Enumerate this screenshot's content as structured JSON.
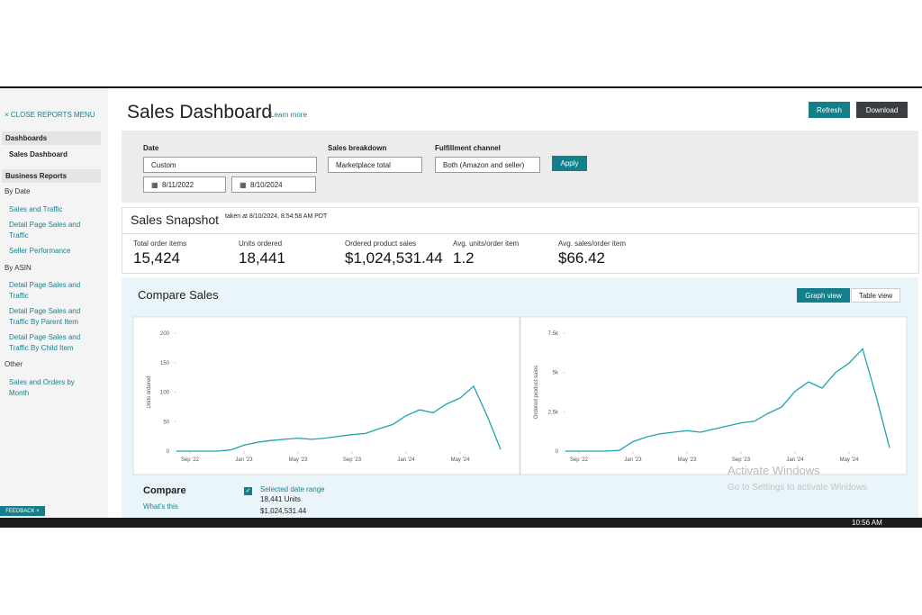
{
  "sidebar": {
    "close": "CLOSE REPORTS MENU",
    "dashboards": {
      "heading": "Dashboards",
      "links": [
        "Sales Dashboard"
      ]
    },
    "business_reports": {
      "heading": "Business Reports",
      "groups": [
        {
          "heading": "By Date",
          "links": [
            "Sales and Traffic",
            "Detail Page Sales and Traffic",
            "Seller Performance"
          ]
        },
        {
          "heading": "By ASIN",
          "links": [
            "Detail Page Sales and Traffic",
            "Detail Page Sales and Traffic By Parent Item",
            "Detail Page Sales and Traffic By Child Item"
          ]
        },
        {
          "heading": "Other",
          "links": [
            "Sales and Orders by Month"
          ]
        }
      ]
    },
    "feedback": "FEEDBACK"
  },
  "header": {
    "title": "Sales Dashboard",
    "learn_more": "Learn more",
    "buttons": [
      "Refresh",
      "Download"
    ]
  },
  "filters": {
    "date": {
      "label": "Date",
      "option": "Custom",
      "start": "8/11/2022",
      "end": "8/10/2024"
    },
    "breakdown": {
      "label": "Sales breakdown",
      "option": "Marketplace total"
    },
    "fulfillment": {
      "label": "Fulfillment channel",
      "option": "Both (Amazon and seller)"
    },
    "apply": "Apply"
  },
  "snapshot": {
    "title": "Sales Snapshot",
    "taken": "taken at 8/10/2024, 8:54:58 AM PDT",
    "metrics": [
      {
        "label": "Total order items",
        "value": "15,424"
      },
      {
        "label": "Units ordered",
        "value": "18,441"
      },
      {
        "label": "Ordered product sales",
        "value": "$1,024,531.44"
      },
      {
        "label": "Avg. units/order item",
        "value": "1.2"
      },
      {
        "label": "Avg. sales/order item",
        "value": "$66.42"
      }
    ]
  },
  "compare_sales": {
    "title": "Compare Sales",
    "views": [
      "Graph view",
      "Table view"
    ]
  },
  "chart_data": [
    {
      "type": "line",
      "y_label": "Units ordered",
      "color": "#1ea3b0",
      "x": [
        "2022-08",
        "2022-09",
        "2022-10",
        "2022-11",
        "2022-12",
        "2023-01",
        "2023-02",
        "2023-03",
        "2023-04",
        "2023-05",
        "2023-06",
        "2023-07",
        "2023-08",
        "2023-09",
        "2023-10",
        "2023-11",
        "2023-12",
        "2024-01",
        "2024-02",
        "2024-03",
        "2024-04",
        "2024-05",
        "2024-06",
        "2024-07",
        "2024-08"
      ],
      "values": [
        0,
        0,
        0,
        0,
        2,
        10,
        15,
        18,
        20,
        22,
        20,
        22,
        25,
        28,
        30,
        38,
        45,
        60,
        70,
        65,
        80,
        90,
        110,
        60,
        3
      ],
      "ylim": [
        0,
        200
      ],
      "yticks": [
        0,
        50,
        100,
        150,
        200
      ],
      "xticks": [
        {
          "value": "2022-09",
          "label": "Sep '22"
        },
        {
          "value": "2023-01",
          "label": "Jan '23"
        },
        {
          "value": "2023-05",
          "label": "May '23"
        },
        {
          "value": "2023-09",
          "label": "Sep '23"
        },
        {
          "value": "2024-01",
          "label": "Jan '24"
        },
        {
          "value": "2024-05",
          "label": "May '24"
        }
      ]
    },
    {
      "type": "line",
      "y_label": "Ordered product sales",
      "color": "#1ea3b0",
      "x": [
        "2022-08",
        "2022-09",
        "2022-10",
        "2022-11",
        "2022-12",
        "2023-01",
        "2023-02",
        "2023-03",
        "2023-04",
        "2023-05",
        "2023-06",
        "2023-07",
        "2023-08",
        "2023-09",
        "2023-10",
        "2023-11",
        "2023-12",
        "2024-01",
        "2024-02",
        "2024-03",
        "2024-04",
        "2024-05",
        "2024-06",
        "2024-07",
        "2024-08"
      ],
      "values": [
        0,
        0,
        0,
        0,
        50,
        600,
        900,
        1100,
        1200,
        1300,
        1200,
        1400,
        1600,
        1800,
        1900,
        2400,
        2800,
        3800,
        4400,
        4000,
        5000,
        5600,
        6500,
        3500,
        200
      ],
      "ylim": [
        0,
        7500
      ],
      "yticks": [
        0,
        {
          "value": 2500,
          "label": "2.5k"
        },
        {
          "value": 5000,
          "label": "5k"
        },
        {
          "value": 7500,
          "label": "7.5k"
        }
      ],
      "xticks": [
        {
          "value": "2022-09",
          "label": "Sep '22"
        },
        {
          "value": "2023-01",
          "label": "Jan '23"
        },
        {
          "value": "2023-05",
          "label": "May '23"
        },
        {
          "value": "2023-09",
          "label": "Sep '23"
        },
        {
          "value": "2024-01",
          "label": "Jan '24"
        },
        {
          "value": "2024-05",
          "label": "May '24"
        }
      ]
    }
  ],
  "compare": {
    "title": "Compare",
    "whats_this": "What's this",
    "selected": "Selected date range",
    "units": "18,441 Units",
    "sales": "$1,024,531.44"
  },
  "watermark": {
    "title": "Activate Windows",
    "subtitle": "Go to Settings to activate Windows"
  },
  "taskbar": {
    "time": "10:56 AM"
  }
}
